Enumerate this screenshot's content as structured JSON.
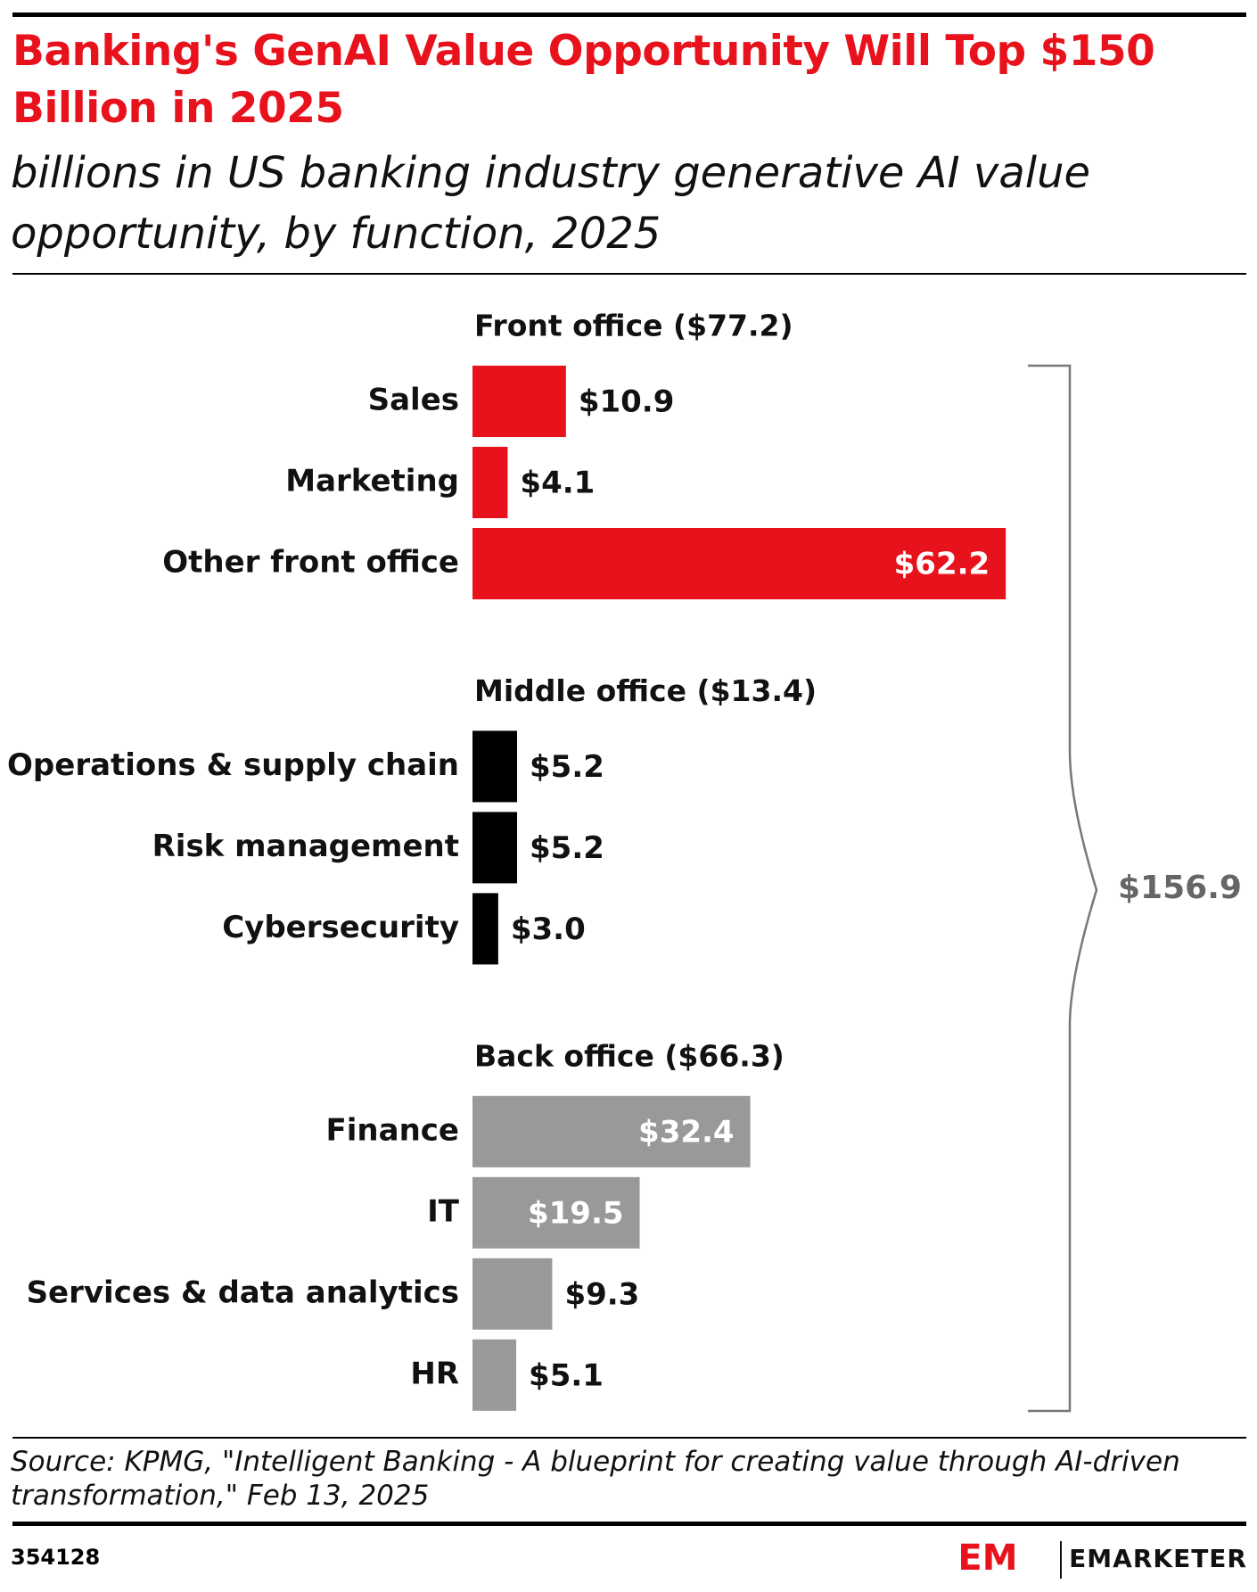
{
  "chart_data": {
    "type": "grouped-bar",
    "title": "Banking's GenAI Value Opportunity Will Top $150 Billion in 2025",
    "subtitle": "billions in US banking industry generative AI value opportunity, by function, 2025",
    "groups": [
      {
        "name": "Front office ($77.2)",
        "color": "#e8121c",
        "categories": [
          "Sales",
          "Marketing",
          "Other front office"
        ],
        "values": [
          10.9,
          4.1,
          62.2
        ],
        "value_labels": [
          "$10.9",
          "$4.1",
          "$62.2"
        ]
      },
      {
        "name": "Middle office ($13.4)",
        "color": "#000000",
        "categories": [
          "Operations & supply chain",
          "Risk management",
          "Cybersecurity"
        ],
        "values": [
          5.2,
          5.2,
          3.0
        ],
        "value_labels": [
          "$5.2",
          "$5.2",
          "$3.0"
        ]
      },
      {
        "name": "Back office ($66.3)",
        "color": "#999999",
        "categories": [
          "Finance",
          "IT",
          "Services & data analytics",
          "HR"
        ],
        "values": [
          32.4,
          19.5,
          9.3,
          5.1
        ],
        "value_labels": [
          "$32.4",
          "$19.5",
          "$9.3",
          "$5.1"
        ]
      }
    ],
    "total_label": "$156.9",
    "source": "Source: KPMG, \"Intelligent Banking - A blueprint for creating value through AI-driven transformation,\" Feb 13, 2025",
    "chart_id": "354128",
    "brand": "EMARKETER"
  }
}
